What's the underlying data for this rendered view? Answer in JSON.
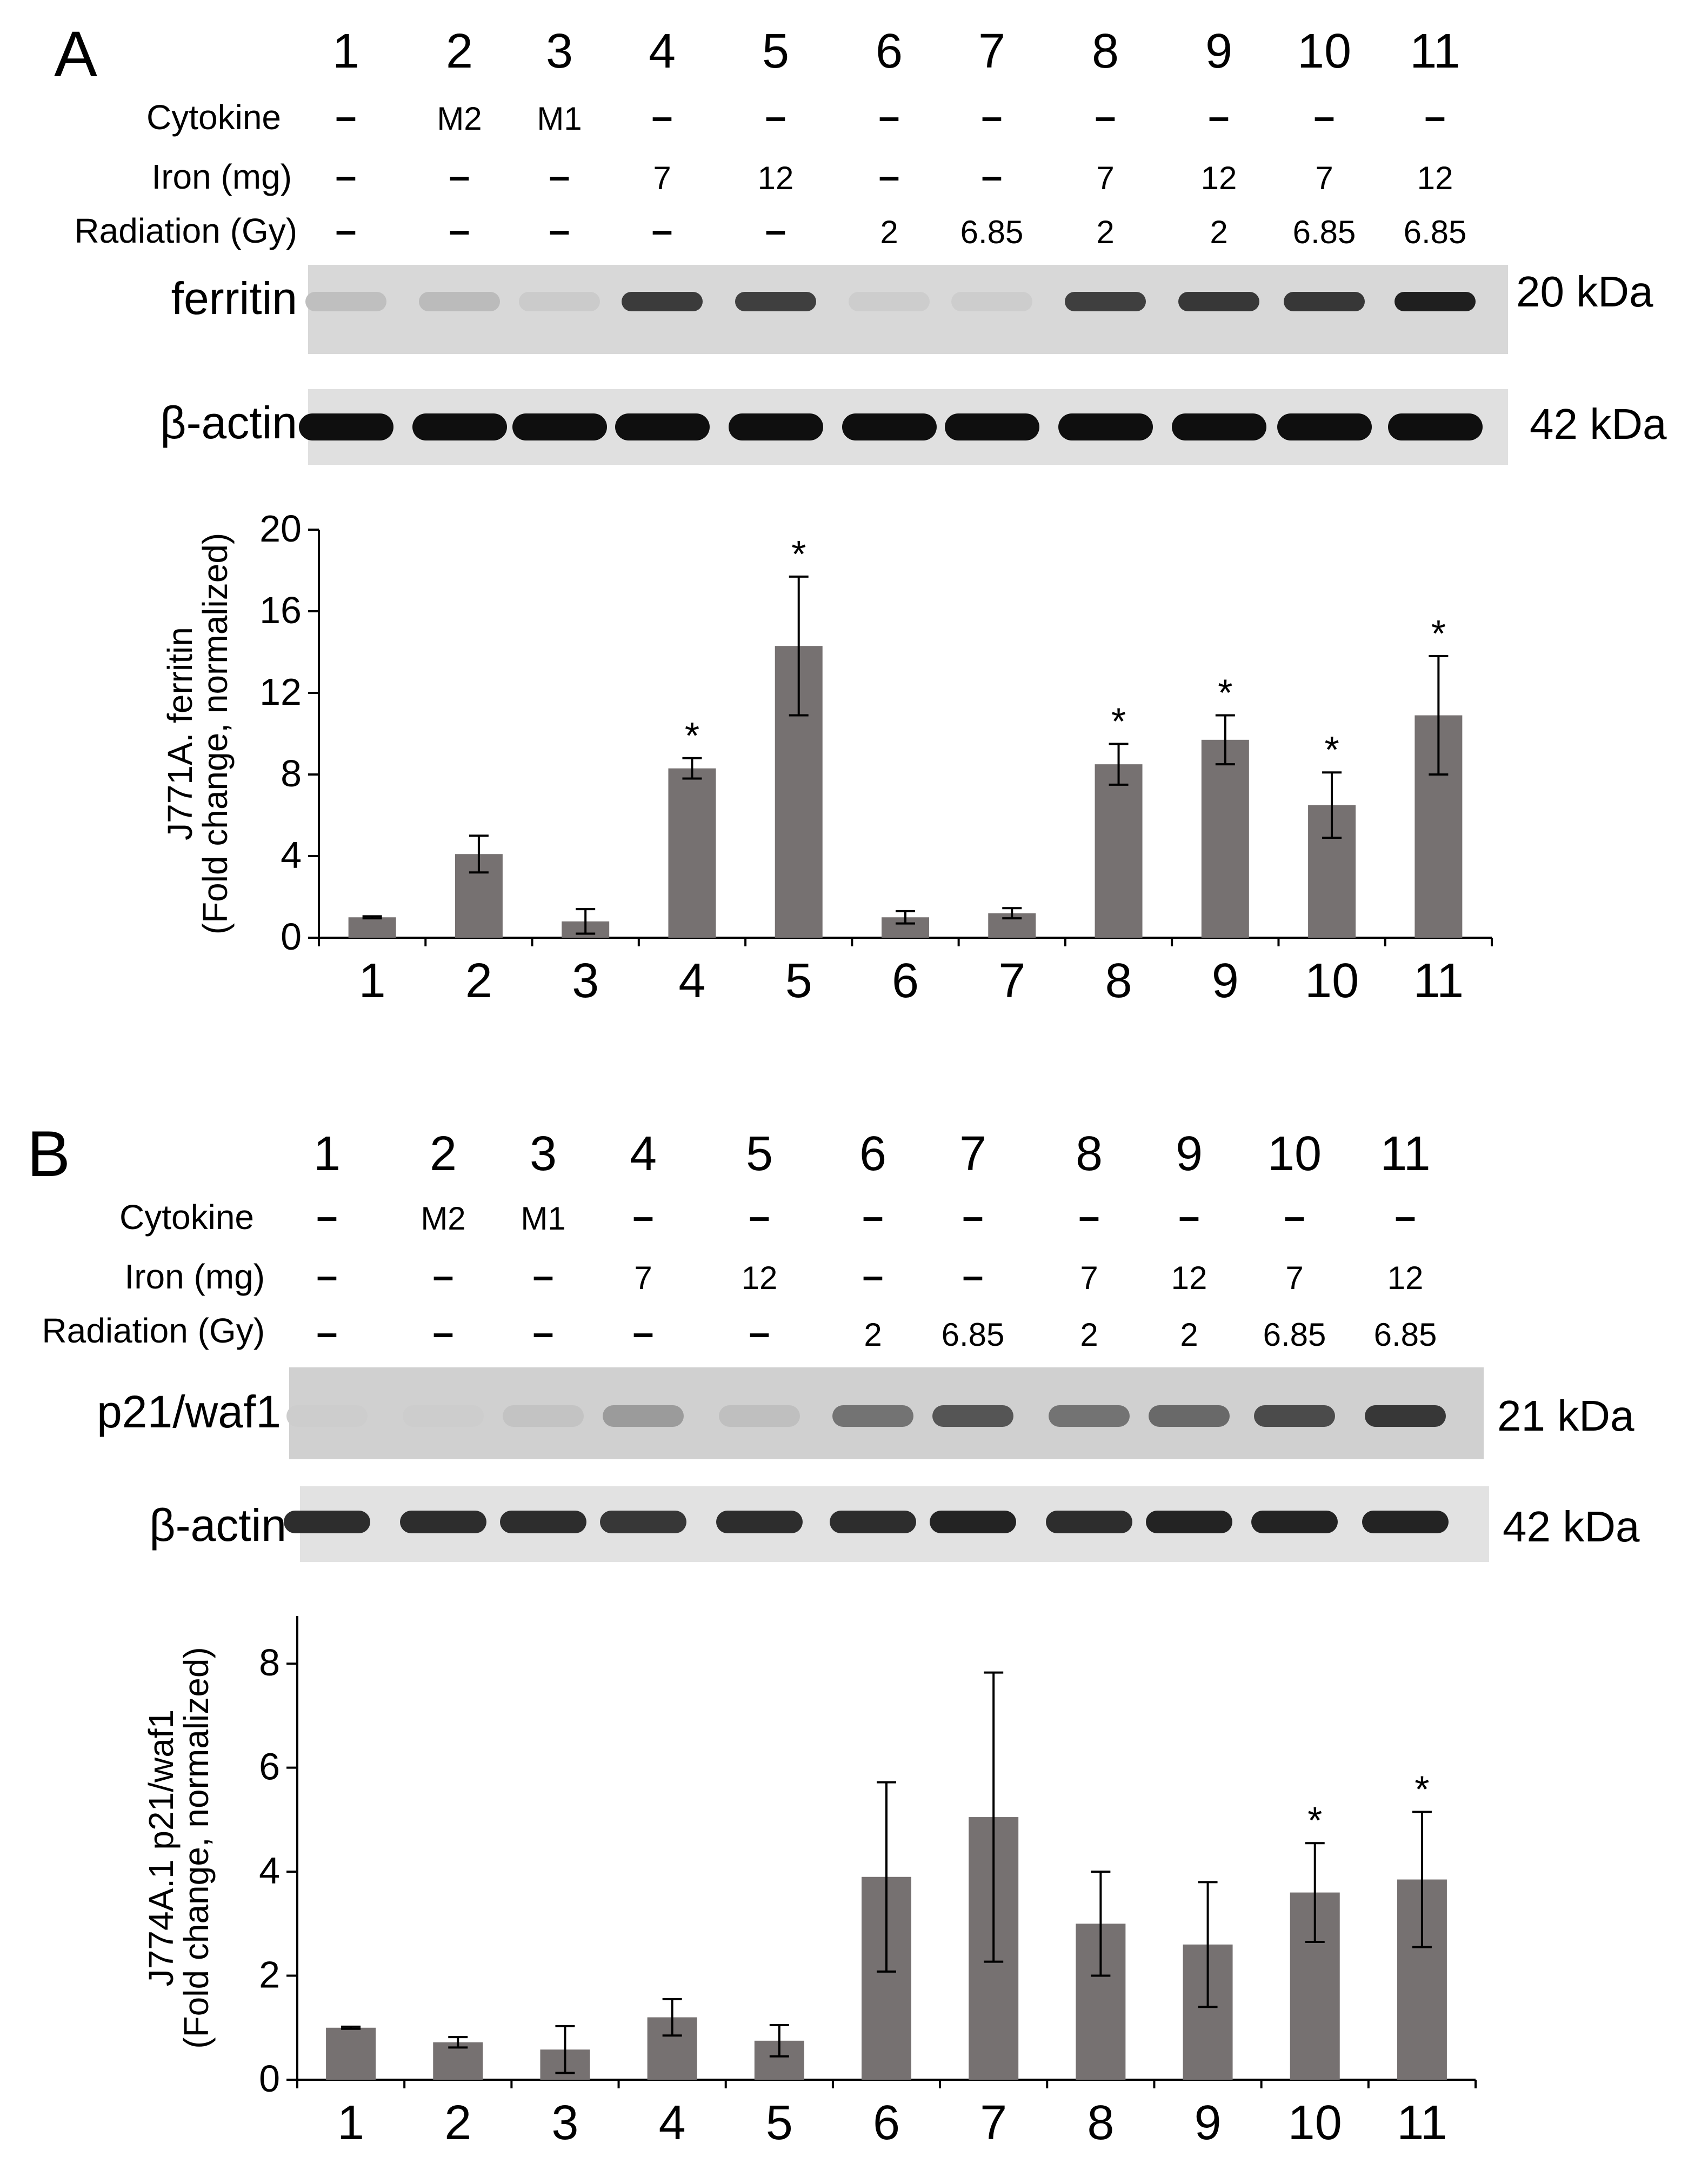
{
  "panels": [
    {
      "letter": "A",
      "lanes": [
        "1",
        "2",
        "3",
        "4",
        "5",
        "6",
        "7",
        "8",
        "9",
        "10",
        "11"
      ],
      "conditions": [
        {
          "label": "Cytokine",
          "values": [
            "-",
            "M2",
            "M1",
            "-",
            "-",
            "-",
            "-",
            "-",
            "-",
            "-",
            "-"
          ]
        },
        {
          "label": "Iron (mg)",
          "values": [
            "-",
            "-",
            "-",
            "7",
            "12",
            "-",
            "-",
            "7",
            "12",
            "7",
            "12"
          ]
        },
        {
          "label": "Radiation (Gy)",
          "values": [
            "-",
            "-",
            "-",
            "-",
            "-",
            "2",
            "6.85",
            "2",
            "2",
            "6.85",
            "6.85"
          ]
        }
      ],
      "blots": [
        {
          "label": "ferritin",
          "kda": "20 kDa",
          "band_intensity": [
            0.12,
            0.14,
            0.06,
            0.78,
            0.76,
            0.05,
            0.05,
            0.76,
            0.8,
            0.8,
            0.92
          ]
        },
        {
          "label": "β-actin",
          "kda": "42 kDa",
          "band_intensity": [
            1,
            1,
            1,
            1,
            1,
            1,
            1,
            1,
            1,
            1,
            1
          ]
        }
      ]
    },
    {
      "letter": "B",
      "lanes": [
        "1",
        "2",
        "3",
        "4",
        "5",
        "6",
        "7",
        "8",
        "9",
        "10",
        "11"
      ],
      "conditions": [
        {
          "label": "Cytokine",
          "values": [
            "-",
            "M2",
            "M1",
            "-",
            "-",
            "-",
            "-",
            "-",
            "-",
            "-",
            "-"
          ]
        },
        {
          "label": "Iron (mg)",
          "values": [
            "-",
            "-",
            "-",
            "7",
            "12",
            "-",
            "-",
            "7",
            "12",
            "7",
            "12"
          ]
        },
        {
          "label": "Radiation (Gy)",
          "values": [
            "-",
            "-",
            "-",
            "-",
            "-",
            "2",
            "6.85",
            "2",
            "2",
            "6.85",
            "6.85"
          ]
        }
      ],
      "blots": [
        {
          "label": "p21/waf1",
          "kda": "21 kDa",
          "band_intensity": [
            0.05,
            0.05,
            0.1,
            0.3,
            0.12,
            0.5,
            0.65,
            0.5,
            0.55,
            0.7,
            0.8
          ]
        },
        {
          "label": "β-actin",
          "kda": "42 kDa",
          "band_intensity": [
            0.85,
            0.85,
            0.85,
            0.8,
            0.85,
            0.85,
            0.9,
            0.85,
            0.9,
            0.9,
            0.9
          ]
        }
      ]
    }
  ],
  "chart_data": [
    {
      "type": "bar",
      "ylabel": [
        "J771A. ferritin",
        "(Fold change, normalized)"
      ],
      "xlabel": "",
      "categories": [
        "1",
        "2",
        "3",
        "4",
        "5",
        "6",
        "7",
        "8",
        "9",
        "10",
        "11"
      ],
      "values": [
        1.0,
        4.1,
        0.8,
        8.3,
        14.3,
        1.0,
        1.2,
        8.5,
        9.7,
        6.5,
        10.9
      ],
      "errors": [
        0.05,
        0.9,
        0.6,
        0.5,
        3.4,
        0.3,
        0.25,
        1.0,
        1.2,
        1.6,
        2.9
      ],
      "significant": [
        false,
        false,
        false,
        true,
        true,
        false,
        false,
        true,
        true,
        true,
        true
      ],
      "annotation_mark": "*",
      "ylim": [
        0,
        20
      ],
      "yticks": [
        0,
        4,
        8,
        12,
        16,
        20
      ],
      "bar_color": "#767171"
    },
    {
      "type": "bar",
      "ylabel": [
        "J774A.1 p21/waf1",
        "(Fold change, normalized)"
      ],
      "xlabel": "",
      "categories": [
        "1",
        "2",
        "3",
        "4",
        "5",
        "6",
        "7",
        "8",
        "9",
        "10",
        "11"
      ],
      "values": [
        1.0,
        0.72,
        0.58,
        1.2,
        0.75,
        3.9,
        5.05,
        3.0,
        2.6,
        3.6,
        3.85
      ],
      "errors": [
        0.02,
        0.1,
        0.45,
        0.35,
        0.3,
        1.82,
        2.78,
        1.0,
        1.2,
        0.95,
        1.3
      ],
      "significant": [
        false,
        false,
        false,
        false,
        false,
        false,
        false,
        false,
        false,
        true,
        true
      ],
      "annotation_mark": "*",
      "ylim": [
        0,
        9
      ],
      "yticks": [
        0,
        2,
        4,
        6,
        8
      ],
      "bar_color": "#767171"
    }
  ]
}
